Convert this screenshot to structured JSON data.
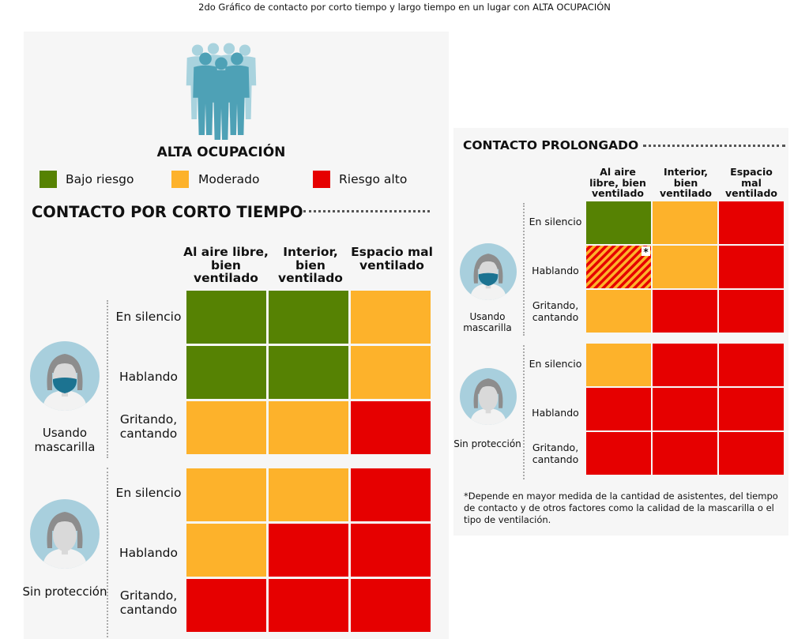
{
  "caption": "2do Gráfico de contacto por corto tiempo y largo tiempo en un lugar con ALTA OCUPACIÓN",
  "occupancy_label": "ALTA OCUPACIÓN",
  "colors": {
    "low": "#568203",
    "moderate": "#fdb22b",
    "high": "#e60000",
    "crowd_front": "#4ea1b6",
    "crowd_back": "#a9d3de",
    "avatar_bg": "#a8cfdd",
    "hair": "#8d8d8d",
    "face": "#d9d9d9",
    "mask": "#1c7391"
  },
  "legend": [
    {
      "key": "low",
      "label": "Bajo riesgo"
    },
    {
      "key": "moderate",
      "label": "Moderado"
    },
    {
      "key": "high",
      "label": "Riesgo alto"
    }
  ],
  "chart_data": [
    {
      "type": "heatmap",
      "title": "CONTACTO POR CORTO TIEMPO",
      "columns": [
        "Al aire libre, bien ventilado",
        "Interior, bien ventilado",
        "Espacio mal ventilado"
      ],
      "groups": [
        {
          "name": "Usando mascarilla",
          "mask": true,
          "rows": [
            {
              "label": "En silencio",
              "cells": [
                "low",
                "low",
                "moderate"
              ]
            },
            {
              "label": "Hablando",
              "cells": [
                "low",
                "low",
                "moderate"
              ]
            },
            {
              "label": "Gritando, cantando",
              "cells": [
                "moderate",
                "moderate",
                "high"
              ]
            }
          ]
        },
        {
          "name": "Sin protección",
          "mask": false,
          "rows": [
            {
              "label": "En silencio",
              "cells": [
                "moderate",
                "moderate",
                "high"
              ]
            },
            {
              "label": "Hablando",
              "cells": [
                "moderate",
                "high",
                "high"
              ]
            },
            {
              "label": "Gritando, cantando",
              "cells": [
                "high",
                "high",
                "high"
              ]
            }
          ]
        }
      ]
    },
    {
      "type": "heatmap",
      "title": "CONTACTO PROLONGADO",
      "columns": [
        "Al aire libre, bien ventilado",
        "Interior, bien ventilado",
        "Espacio mal ventilado"
      ],
      "groups": [
        {
          "name": "Usando mascarilla",
          "mask": true,
          "rows": [
            {
              "label": "En silencio",
              "cells": [
                "low",
                "moderate",
                "high"
              ]
            },
            {
              "label": "Hablando",
              "cells": [
                "moderate-high-striped",
                "moderate",
                "high"
              ]
            },
            {
              "label": "Gritando, cantando",
              "cells": [
                "moderate",
                "high",
                "high"
              ]
            }
          ]
        },
        {
          "name": "Sin protección",
          "mask": false,
          "rows": [
            {
              "label": "En silencio",
              "cells": [
                "moderate",
                "high",
                "high"
              ]
            },
            {
              "label": "Hablando",
              "cells": [
                "high",
                "high",
                "high"
              ]
            },
            {
              "label": "Gritando, cantando",
              "cells": [
                "high",
                "high",
                "high"
              ]
            }
          ]
        }
      ],
      "annotations": [
        {
          "group": 0,
          "row": 1,
          "col": 0,
          "mark": "*"
        }
      ]
    }
  ],
  "footnote": "*Depende en mayor medida de la cantidad de asistentes, del tiempo de contacto y de otros factores como la calidad de la mascarilla o el tipo de ventilación."
}
